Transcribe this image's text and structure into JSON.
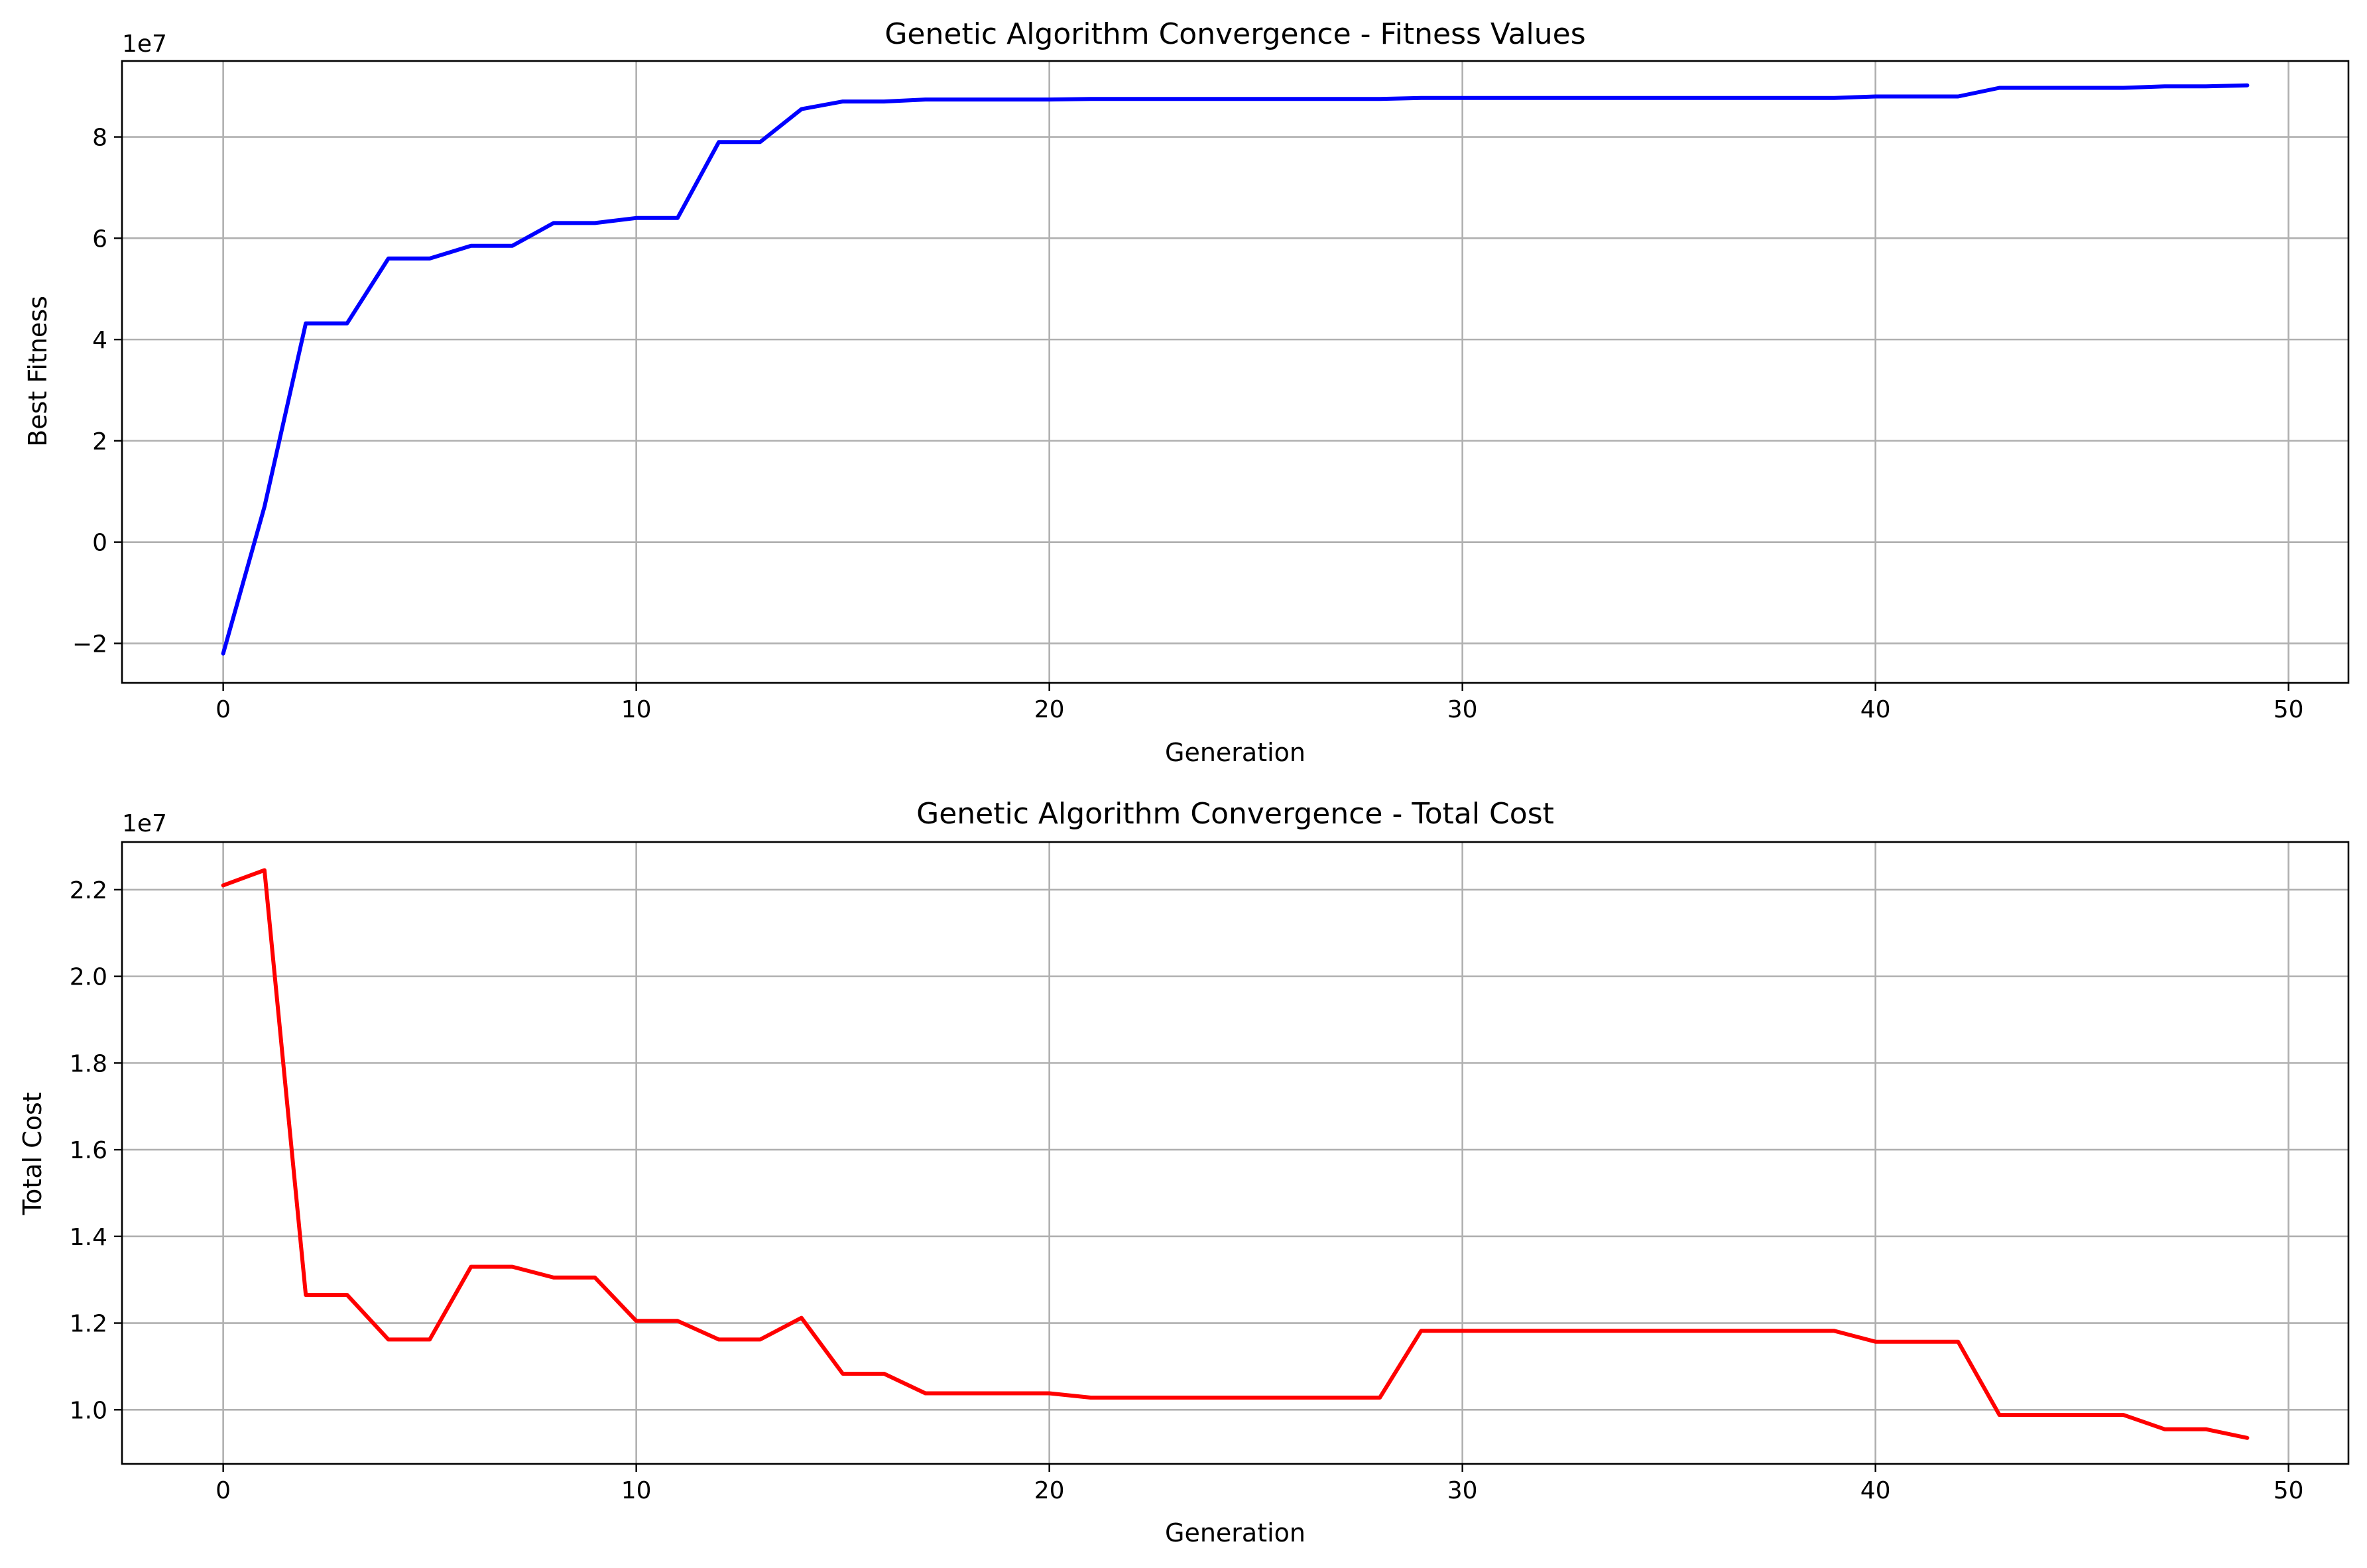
{
  "chart_data": [
    {
      "type": "line",
      "title": "Genetic Algorithm Convergence - Fitness Values",
      "xlabel": "Generation",
      "ylabel": "Best Fitness",
      "offset_text": "1e7",
      "xlim": [
        -2.45,
        51.45
      ],
      "ylim": [
        -2.78,
        9.5
      ],
      "xticks": [
        0,
        10,
        20,
        30,
        40,
        50
      ],
      "xtick_labels": [
        "0",
        "10",
        "20",
        "30",
        "40",
        "50"
      ],
      "yticks": [
        -2,
        0,
        2,
        4,
        6,
        8
      ],
      "ytick_labels": [
        "−2",
        "0",
        "2",
        "4",
        "6",
        "8"
      ],
      "grid": true,
      "series": [
        {
          "color": "#0000ff",
          "x": [
            0,
            1,
            2,
            3,
            4,
            5,
            6,
            7,
            8,
            9,
            10,
            11,
            12,
            13,
            14,
            15,
            16,
            17,
            18,
            19,
            20,
            21,
            22,
            23,
            24,
            25,
            26,
            27,
            28,
            29,
            30,
            31,
            32,
            33,
            34,
            35,
            36,
            37,
            38,
            39,
            40,
            41,
            42,
            43,
            44,
            45,
            46,
            47,
            48,
            49
          ],
          "y": [
            -2.2,
            0.7,
            4.32,
            4.32,
            5.6,
            5.6,
            5.85,
            5.85,
            6.3,
            6.3,
            6.4,
            6.4,
            7.9,
            7.9,
            8.55,
            8.7,
            8.7,
            8.74,
            8.74,
            8.74,
            8.74,
            8.75,
            8.75,
            8.75,
            8.75,
            8.75,
            8.75,
            8.75,
            8.75,
            8.77,
            8.77,
            8.77,
            8.77,
            8.77,
            8.77,
            8.77,
            8.77,
            8.77,
            8.77,
            8.77,
            8.8,
            8.8,
            8.8,
            8.97,
            8.97,
            8.97,
            8.97,
            9.0,
            9.0,
            9.02
          ]
        }
      ]
    },
    {
      "type": "line",
      "title": "Genetic Algorithm Convergence - Total Cost",
      "xlabel": "Generation",
      "ylabel": "Total Cost",
      "offset_text": "1e7",
      "xlim": [
        -2.45,
        51.45
      ],
      "ylim": [
        0.875,
        2.31
      ],
      "xticks": [
        0,
        10,
        20,
        30,
        40,
        50
      ],
      "xtick_labels": [
        "0",
        "10",
        "20",
        "30",
        "40",
        "50"
      ],
      "yticks": [
        1.0,
        1.2,
        1.4,
        1.6,
        1.8,
        2.0,
        2.2
      ],
      "ytick_labels": [
        "1.0",
        "1.2",
        "1.4",
        "1.6",
        "1.8",
        "2.0",
        "2.2"
      ],
      "grid": true,
      "series": [
        {
          "color": "#ff0000",
          "x": [
            0,
            1,
            2,
            3,
            4,
            5,
            6,
            7,
            8,
            9,
            10,
            11,
            12,
            13,
            14,
            15,
            16,
            17,
            18,
            19,
            20,
            21,
            22,
            23,
            24,
            25,
            26,
            27,
            28,
            29,
            30,
            31,
            32,
            33,
            34,
            35,
            36,
            37,
            38,
            39,
            40,
            41,
            42,
            43,
            44,
            45,
            46,
            47,
            48,
            49
          ],
          "y": [
            2.21,
            2.245,
            1.265,
            1.265,
            1.162,
            1.162,
            1.33,
            1.33,
            1.305,
            1.305,
            1.205,
            1.205,
            1.162,
            1.162,
            1.212,
            1.083,
            1.083,
            1.038,
            1.038,
            1.038,
            1.038,
            1.028,
            1.028,
            1.028,
            1.028,
            1.028,
            1.028,
            1.028,
            1.028,
            1.182,
            1.182,
            1.182,
            1.182,
            1.182,
            1.182,
            1.182,
            1.182,
            1.182,
            1.182,
            1.182,
            1.157,
            1.157,
            1.157,
            0.988,
            0.988,
            0.988,
            0.988,
            0.955,
            0.955,
            0.935
          ]
        }
      ]
    }
  ]
}
